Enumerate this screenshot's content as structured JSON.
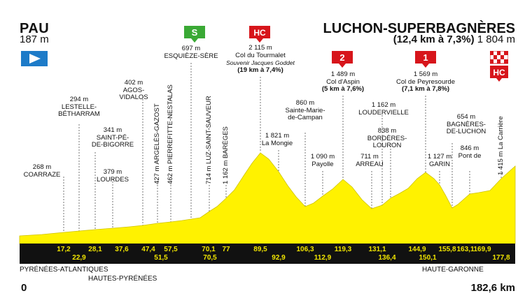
{
  "start": {
    "name": "PAU",
    "altitude": "187 m"
  },
  "finish": {
    "name": "LUCHON-SUPERBAGNÈRES",
    "climb": "(12,4 km à 7,3%)",
    "altitude": "1 804 m"
  },
  "badges": {
    "sprint": "S",
    "hc": "HC",
    "cat2": "2",
    "cat1": "1",
    "hc_finish": "HC"
  },
  "labels": {
    "coarraze": [
      "268 m",
      "COARRAZE"
    ],
    "lestelle": [
      "294 m",
      "LESTELLE-",
      "BÉTHARRAM"
    ],
    "saint_pe": [
      "341 m",
      "SAINT-PÉ-",
      "DE-BIGORRE"
    ],
    "lourdes": [
      "379 m",
      "LOURDES"
    ],
    "agos": [
      "402 m",
      "AGOS-",
      "VIDALOS"
    ],
    "argeles": "427 m ARGELÈS-GAZOST",
    "pierrefitte": "462 m PIERREFITTE-NESTALAS",
    "esquieze": [
      "697 m",
      "ESQUIÈZE-SÈRE"
    ],
    "luz": "714 m LUZ-SAINT-SAUVEUR",
    "bareges": "1 162 m BARÈGES",
    "tourmalet": [
      "2 115 m",
      "Col du Tourmalet",
      "Souvenir Jacques Goddet",
      "(19 km à 7,4%)"
    ],
    "mongie": [
      "1 821 m",
      "La Mongie"
    ],
    "sainte_marie": [
      "860 m",
      "Sainte-Marie-",
      "de-Campan"
    ],
    "payolle": [
      "1 090 m",
      "Payolle"
    ],
    "aspin": [
      "1 489 m",
      "Col d'Aspin",
      "(5 km à 7,6%)"
    ],
    "arreau": [
      "711 m",
      "ARREAU"
    ],
    "loudervielle": [
      "1 162 m",
      "LOUDERVIELLE"
    ],
    "borderes": [
      "838 m",
      "BORDÈRES-",
      "LOURON"
    ],
    "peyresourde": [
      "1 569 m",
      "Col de Peyresourde",
      "(7,1 km à 7,8%)"
    ],
    "garin": [
      "1 127 m",
      "GARIN"
    ],
    "bagneres": [
      "654 m",
      "BAGNÈRES-",
      "DE-LUCHON"
    ],
    "pont_ravi": [
      "846 m",
      "Pont de",
      "de Ravi"
    ],
    "carriere": "1 415 m La Carrière"
  },
  "km_top": [
    "17,2",
    "28,1",
    "37,6",
    "47,4",
    "57,5",
    "70,1",
    "77",
    "89,5",
    "106,3",
    "119,3",
    "131,1",
    "144,9",
    "155,8",
    "163,1",
    "169,9"
  ],
  "km_bottom": [
    "22,9",
    "51,5",
    "70,5",
    "92,9",
    "112,9",
    "136,4",
    "150,1",
    "177,8"
  ],
  "departments": {
    "pyr_atl": "PYRÉNÉES-ATLANTIQUES",
    "htes_pyr": "HAUTES-PYRÉNÉES",
    "hte_gar": "HAUTE-GARONNE"
  },
  "distance": {
    "start": "0",
    "end": "182,6 km"
  },
  "colors": {
    "profile": "#fff200",
    "bar": "#111111",
    "km_text": "#f2e600",
    "hc_red": "#d7151b",
    "sprint_green": "#3aa935",
    "start_blue": "#1d7bc8"
  }
}
